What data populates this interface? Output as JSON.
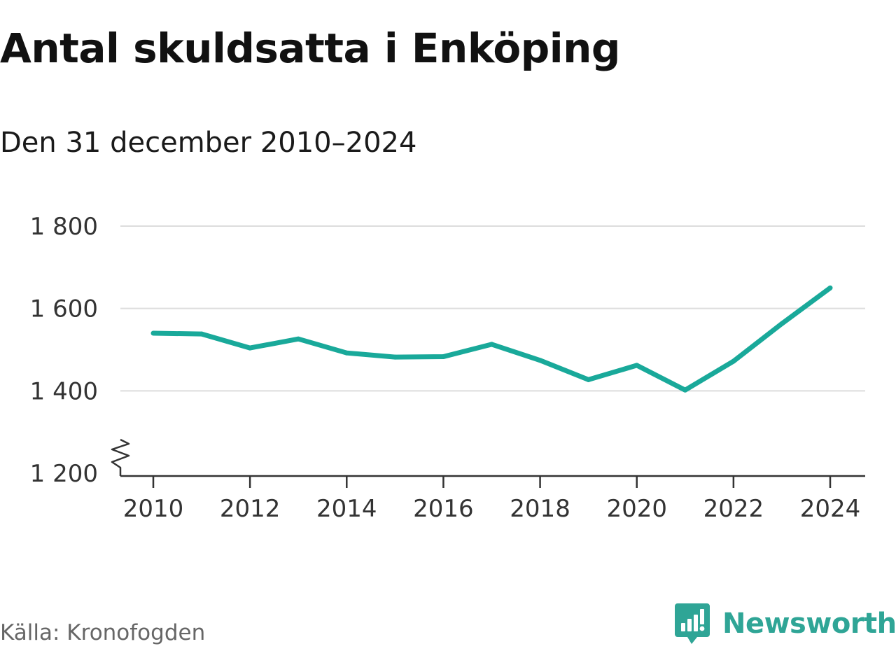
{
  "title": "Antal skuldsatta i Enköping",
  "subtitle": "Den 31 december 2010–2024",
  "source": "Källa: Kronofogden",
  "brand": {
    "name": "Newsworthy",
    "icon": "newsworthy-logo-icon",
    "color": "#2fa596"
  },
  "colors": {
    "line": "#19a99a",
    "grid": "#dddddd",
    "axis": "#333333"
  },
  "chart_data": {
    "type": "line",
    "title": "Antal skuldsatta i Enköping",
    "xlabel": "",
    "ylabel": "",
    "x": [
      2010,
      2011,
      2012,
      2013,
      2014,
      2015,
      2016,
      2017,
      2018,
      2019,
      2020,
      2021,
      2022,
      2023,
      2024
    ],
    "series": [
      {
        "name": "Antal skuldsatta",
        "values": [
          1540,
          1538,
          1504,
          1526,
          1492,
          1482,
          1483,
          1513,
          1474,
          1427,
          1462,
          1402,
          1472,
          1563,
          1650
        ]
      }
    ],
    "ylim": [
      1200,
      1800
    ],
    "y_ticks": [
      1200,
      1400,
      1600,
      1800
    ],
    "y_tick_labels": [
      "1 200",
      "1 400",
      "1 600",
      "1 800"
    ],
    "x_ticks": [
      2010,
      2012,
      2014,
      2016,
      2018,
      2020,
      2022,
      2024
    ],
    "x_tick_labels": [
      "2010",
      "2012",
      "2014",
      "2016",
      "2018",
      "2020",
      "2022",
      "2024"
    ],
    "grid": true,
    "y_axis_break": true
  }
}
